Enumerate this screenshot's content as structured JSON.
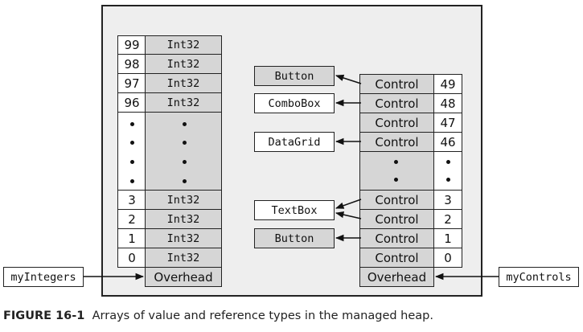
{
  "left_array": {
    "variable": "myIntegers",
    "type_label": "Int32",
    "overhead": "Overhead",
    "top_rows": [
      {
        "index": "99",
        "value": "Int32"
      },
      {
        "index": "98",
        "value": "Int32"
      },
      {
        "index": "97",
        "value": "Int32"
      },
      {
        "index": "96",
        "value": "Int32"
      }
    ],
    "bottom_rows": [
      {
        "index": "3",
        "value": "Int32"
      },
      {
        "index": "2",
        "value": "Int32"
      },
      {
        "index": "1",
        "value": "Int32"
      },
      {
        "index": "0",
        "value": "Int32"
      }
    ]
  },
  "right_array": {
    "variable": "myControls",
    "overhead": "Overhead",
    "top_rows": [
      {
        "index": "49",
        "value": "Control"
      },
      {
        "index": "48",
        "value": "Control"
      },
      {
        "index": "47",
        "value": "Control"
      },
      {
        "index": "46",
        "value": "Control"
      }
    ],
    "bottom_rows": [
      {
        "index": "3",
        "value": "Control"
      },
      {
        "index": "2",
        "value": "Control"
      },
      {
        "index": "1",
        "value": "Control"
      },
      {
        "index": "0",
        "value": "Control"
      }
    ]
  },
  "objects": [
    "Button",
    "ComboBox",
    "DataGrid",
    "TextBox",
    "Button"
  ],
  "caption": {
    "number": "FIGURE 16-1",
    "text": "Arrays of value and reference types in the managed heap."
  },
  "colors": {
    "cell_fill": "#d6d6d6",
    "heap_fill": "#eeeeee",
    "outline": "#222222"
  }
}
